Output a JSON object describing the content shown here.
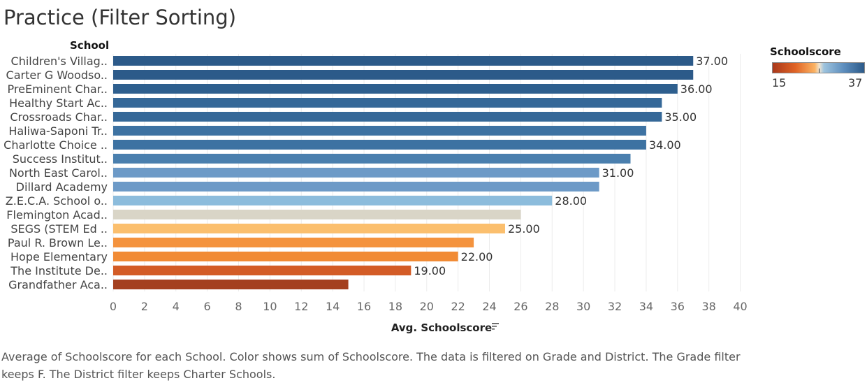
{
  "title": "Practice (Filter Sorting)",
  "row_header": "School",
  "legend": {
    "title": "Schoolscore",
    "min_label": "15",
    "max_label": "37",
    "colors": [
      "#a9381b",
      "#e06426",
      "#fbb363",
      "#efe4d2",
      "#9dc3de",
      "#5c8dbd",
      "#2c5a89"
    ]
  },
  "caption": "Average of Schoolscore for each School.  Color shows sum of Schoolscore. The data is filtered on Grade and District. The Grade filter keeps F. The District filter keeps Charter Schools.",
  "chart_data": {
    "type": "bar",
    "orientation": "horizontal",
    "xlabel": "Avg. Schoolscore",
    "xlim": [
      0,
      41
    ],
    "xticks": [
      0,
      2,
      4,
      6,
      8,
      10,
      12,
      14,
      16,
      18,
      20,
      22,
      24,
      26,
      28,
      30,
      32,
      34,
      36,
      38,
      40
    ],
    "grid": true,
    "sort_icon": "sort-descending-icon",
    "categories": [
      "Children's Villag..",
      "Carter G Woodso..",
      "PreEminent Char..",
      "Healthy Start Ac..",
      "Crossroads Char..",
      "Haliwa-Saponi Tr..",
      "Charlotte Choice ..",
      "Success Institut..",
      "North East Carol..",
      "Dillard Academy",
      "Z.E.C.A. School o..",
      "Flemington Acad..",
      "SEGS (STEM Ed ..",
      "Paul R. Brown Le..",
      "Hope Elementary",
      "The Institute De..",
      "Grandfather Aca.."
    ],
    "values": [
      37,
      37,
      36,
      35,
      35,
      34,
      34,
      33,
      31,
      31,
      28,
      26,
      25,
      23,
      22,
      19,
      15
    ],
    "data_labels": [
      "37.00",
      "",
      "36.00",
      "",
      "35.00",
      "",
      "34.00",
      "",
      "31.00",
      "",
      "28.00",
      "",
      "25.00",
      "",
      "22.00",
      "19.00",
      ""
    ],
    "bar_colors": [
      "#2c5a89",
      "#2c5a89",
      "#2e5f8e",
      "#356898",
      "#356898",
      "#3d72a2",
      "#3d72a2",
      "#4a7fae",
      "#6d9ac7",
      "#6d9ac7",
      "#8cbcdc",
      "#d9d5c7",
      "#fbbf6e",
      "#f4933e",
      "#f18b35",
      "#d35c26",
      "#a4401f"
    ]
  }
}
